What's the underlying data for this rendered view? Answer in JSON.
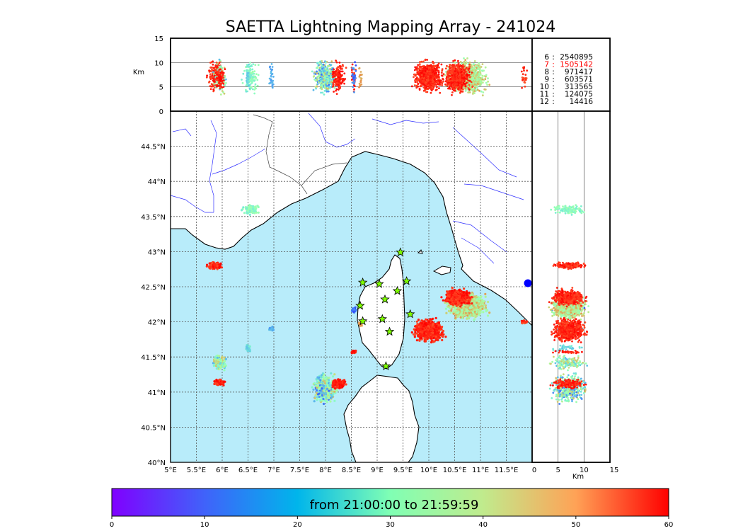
{
  "chart_data": {
    "type": "scatter",
    "title": "SAETTA Lightning Mapping Array - 241024",
    "colorbar": {
      "label": "from 21:00:00 to 21:59:59",
      "ticks": [
        "0",
        "10",
        "20",
        "30",
        "40",
        "50",
        "60"
      ],
      "colormap": "rainbow"
    },
    "map": {
      "lon_range": [
        5.0,
        12.0
      ],
      "lat_range": [
        40.0,
        45.0
      ],
      "x_ticks": [
        "5°E",
        "5.5°E",
        "6°E",
        "6.5°E",
        "7°E",
        "7.5°E",
        "8°E",
        "8.5°E",
        "9°E",
        "9.5°E",
        "10°E",
        "10.5°E",
        "11°E",
        "11.5°E"
      ],
      "x_tick_values": [
        5.0,
        5.5,
        6.0,
        6.5,
        7.0,
        7.5,
        8.0,
        8.5,
        9.0,
        9.5,
        10.0,
        10.5,
        11.0,
        11.5
      ],
      "y_ticks": [
        "40°N",
        "40.5°N",
        "41°N",
        "41.5°N",
        "42°N",
        "42.5°N",
        "43°N",
        "43.5°N",
        "44°N",
        "44.5°N"
      ],
      "y_tick_values": [
        40.0,
        40.5,
        41.0,
        41.5,
        42.0,
        42.5,
        43.0,
        43.5,
        44.0,
        44.5
      ],
      "grid": true,
      "sea_color": "#b8ecfa",
      "stations": [
        {
          "lon": 9.45,
          "lat": 42.99
        },
        {
          "lon": 8.72,
          "lat": 42.56
        },
        {
          "lon": 9.04,
          "lat": 42.54
        },
        {
          "lon": 9.57,
          "lat": 42.58
        },
        {
          "lon": 9.39,
          "lat": 42.44
        },
        {
          "lon": 9.15,
          "lat": 42.32
        },
        {
          "lon": 8.67,
          "lat": 42.23
        },
        {
          "lon": 9.64,
          "lat": 42.11
        },
        {
          "lon": 8.72,
          "lat": 42.01
        },
        {
          "lon": 9.1,
          "lat": 42.04
        },
        {
          "lon": 9.24,
          "lat": 41.86
        },
        {
          "lon": 9.17,
          "lat": 41.37
        }
      ],
      "clusters": [
        {
          "lon": 6.55,
          "lat": 43.6,
          "rlon": 0.2,
          "rlat": 0.08,
          "t": [
            22,
            32
          ],
          "n": 120
        },
        {
          "lon": 5.85,
          "lat": 42.8,
          "rlon": 0.17,
          "rlat": 0.06,
          "t": [
            54,
            60
          ],
          "n": 140
        },
        {
          "lon": 6.95,
          "lat": 41.9,
          "rlon": 0.05,
          "rlat": 0.04,
          "t": [
            12,
            16
          ],
          "n": 30
        },
        {
          "lon": 6.5,
          "lat": 41.62,
          "rlon": 0.07,
          "rlat": 0.07,
          "t": [
            16,
            24
          ],
          "n": 40
        },
        {
          "lon": 5.95,
          "lat": 41.42,
          "rlon": 0.15,
          "rlat": 0.13,
          "t": [
            15,
            45
          ],
          "n": 150
        },
        {
          "lon": 5.95,
          "lat": 41.14,
          "rlon": 0.13,
          "rlat": 0.05,
          "t": [
            55,
            60
          ],
          "n": 90
        },
        {
          "lon": 8.0,
          "lat": 41.05,
          "rlon": 0.28,
          "rlat": 0.25,
          "t": [
            8,
            45
          ],
          "n": 420
        },
        {
          "lon": 8.25,
          "lat": 41.12,
          "rlon": 0.18,
          "rlat": 0.09,
          "t": [
            55,
            60
          ],
          "n": 140
        },
        {
          "lon": 8.55,
          "lat": 41.57,
          "rlon": 0.08,
          "rlat": 0.03,
          "t": [
            55,
            60
          ],
          "n": 30
        },
        {
          "lon": 8.55,
          "lat": 42.17,
          "rlon": 0.06,
          "rlat": 0.05,
          "t": [
            5,
            14
          ],
          "n": 25
        },
        {
          "lon": 8.68,
          "lat": 41.97,
          "rlon": 0.05,
          "rlat": 0.05,
          "t": [
            44,
            50
          ],
          "n": 20
        },
        {
          "lon": 10.75,
          "lat": 42.22,
          "rlon": 0.48,
          "rlat": 0.22,
          "t": [
            28,
            48
          ],
          "n": 900
        },
        {
          "lon": 10.55,
          "lat": 42.35,
          "rlon": 0.32,
          "rlat": 0.14,
          "t": [
            54,
            60
          ],
          "n": 500
        },
        {
          "lon": 10.0,
          "lat": 41.88,
          "rlon": 0.36,
          "rlat": 0.2,
          "t": [
            54,
            60
          ],
          "n": 700
        },
        {
          "lon": 11.85,
          "lat": 42.0,
          "rlon": 0.07,
          "rlat": 0.03,
          "t": [
            52,
            58
          ],
          "n": 25
        }
      ]
    },
    "top_panel": {
      "ylabel": "Km",
      "y_ticks": [
        "0",
        "5",
        "10",
        "15"
      ],
      "y_tick_values": [
        0,
        5,
        10,
        15
      ],
      "alt_range": [
        0,
        15
      ],
      "counts": [
        {
          "bin": "6",
          "count": "2540895"
        },
        {
          "bin": "7",
          "count": "1505142",
          "color": "#ff0000"
        },
        {
          "bin": "8",
          "count": "971417"
        },
        {
          "bin": "9",
          "count": "603571"
        },
        {
          "bin": "10",
          "count": "313565"
        },
        {
          "bin": "11",
          "count": "124075"
        },
        {
          "bin": "12",
          "count": "14416"
        }
      ]
    },
    "right_panel": {
      "xlabel": "Km",
      "x_ticks": [
        "0",
        "5",
        "10",
        "15"
      ],
      "x_tick_values": [
        0,
        5,
        10,
        15
      ],
      "alt_range": [
        0,
        15
      ]
    }
  }
}
